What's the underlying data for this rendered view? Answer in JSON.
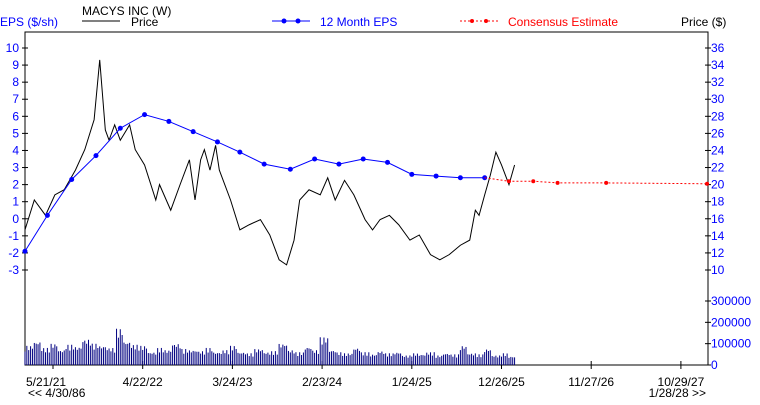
{
  "chart_data": {
    "type": "line",
    "title": "MACYS INC (W)",
    "left_axis_label": "EPS ($/sh)",
    "right_axis_label": "Price ($)",
    "legend": {
      "price": "Price",
      "eps": "12 Month EPS",
      "consensus": "Consensus Estimate"
    },
    "eps_ticks": [
      10,
      9,
      8,
      7,
      6,
      5,
      4,
      3,
      2,
      1,
      0,
      -1,
      -2,
      -3
    ],
    "price_ticks": [
      36,
      34,
      32,
      30,
      28,
      26,
      24,
      22,
      20,
      18,
      16,
      14,
      12,
      10
    ],
    "volume_ticks": [
      "300000",
      "200000",
      "100000",
      "0"
    ],
    "x_ticks": [
      "5/21/21",
      "4/22/22",
      "3/24/23",
      "2/23/24",
      "1/24/25",
      "12/26/25",
      "11/27/26",
      "10/29/27"
    ],
    "range_start": "<< 4/30/86",
    "range_end": "1/28/28 >>",
    "colors": {
      "eps": "#0000ff",
      "consensus": "#ff0000",
      "price": "#000000",
      "volume": "#000080"
    },
    "week_axis": {
      "first_tick_week": 15,
      "weeks_per_tick": 48,
      "total_weeks": 365
    },
    "price_series": [
      [
        0,
        14.7
      ],
      [
        5,
        18.2
      ],
      [
        11,
        16.4
      ],
      [
        16,
        18.8
      ],
      [
        21,
        19.4
      ],
      [
        27,
        21.7
      ],
      [
        32,
        24.1
      ],
      [
        37,
        27.6
      ],
      [
        40,
        34.6
      ],
      [
        43,
        26.4
      ],
      [
        45,
        25.2
      ],
      [
        48,
        27.0
      ],
      [
        51,
        25.2
      ],
      [
        56,
        27.0
      ],
      [
        59,
        24.1
      ],
      [
        64,
        22.3
      ],
      [
        70,
        18.2
      ],
      [
        72,
        20.0
      ],
      [
        78,
        17.0
      ],
      [
        83,
        20.0
      ],
      [
        88,
        22.9
      ],
      [
        91,
        18.2
      ],
      [
        94,
        22.9
      ],
      [
        96,
        24.1
      ],
      [
        99,
        21.7
      ],
      [
        102,
        24.6
      ],
      [
        104,
        21.7
      ],
      [
        110,
        18.2
      ],
      [
        115,
        14.7
      ],
      [
        120,
        15.3
      ],
      [
        126,
        15.9
      ],
      [
        131,
        14.1
      ],
      [
        136,
        11.2
      ],
      [
        140,
        10.6
      ],
      [
        144,
        13.5
      ],
      [
        147,
        18.2
      ],
      [
        152,
        19.4
      ],
      [
        158,
        18.8
      ],
      [
        162,
        20.8
      ],
      [
        166,
        18.2
      ],
      [
        171,
        20.5
      ],
      [
        176,
        18.8
      ],
      [
        182,
        15.9
      ],
      [
        186,
        14.7
      ],
      [
        190,
        15.9
      ],
      [
        195,
        16.4
      ],
      [
        200,
        15.3
      ],
      [
        206,
        13.5
      ],
      [
        211,
        14.1
      ],
      [
        217,
        11.8
      ],
      [
        222,
        11.2
      ],
      [
        227,
        11.8
      ],
      [
        233,
        12.9
      ],
      [
        238,
        13.5
      ],
      [
        241,
        17.0
      ],
      [
        243,
        16.4
      ],
      [
        246,
        18.8
      ],
      [
        249,
        21.1
      ],
      [
        252,
        23.8
      ],
      [
        255,
        22.3
      ],
      [
        259,
        20.0
      ],
      [
        262,
        22.3
      ]
    ],
    "eps_series": [
      [
        0,
        -1.9
      ],
      [
        12,
        0.2
      ],
      [
        25,
        2.3
      ],
      [
        38,
        3.7
      ],
      [
        51,
        5.3
      ],
      [
        64,
        6.1
      ],
      [
        77,
        5.7
      ],
      [
        90,
        5.1
      ],
      [
        103,
        4.5
      ],
      [
        115,
        3.9
      ],
      [
        128,
        3.2
      ],
      [
        142,
        2.9
      ],
      [
        155,
        3.5
      ],
      [
        168,
        3.2
      ],
      [
        181,
        3.5
      ],
      [
        194,
        3.3
      ],
      [
        207,
        2.6
      ],
      [
        220,
        2.5
      ],
      [
        233,
        2.4
      ],
      [
        246,
        2.4
      ]
    ],
    "consensus_series": [
      [
        259,
        2.2
      ],
      [
        272,
        2.2
      ],
      [
        285,
        2.1
      ],
      [
        311,
        2.1
      ],
      [
        365,
        2.05
      ]
    ],
    "volume_series": [
      90000,
      110000,
      80000,
      100000,
      70000,
      95000,
      85000,
      120000,
      100000,
      90000,
      80000,
      170000,
      110000,
      95000,
      90000,
      60000,
      80000,
      70000,
      100000,
      75000,
      70000,
      65000,
      80000,
      60000,
      70000,
      90000,
      60000,
      55000,
      75000,
      60000,
      65000,
      100000,
      70000,
      60000,
      85000,
      70000,
      130000,
      70000,
      60000,
      55000,
      80000,
      60000,
      50000,
      65000,
      55000,
      60000,
      45000,
      55000,
      50000,
      60000,
      45000,
      55000,
      50000,
      90000,
      55000,
      50000,
      75000,
      45000,
      55000,
      40000
    ]
  }
}
